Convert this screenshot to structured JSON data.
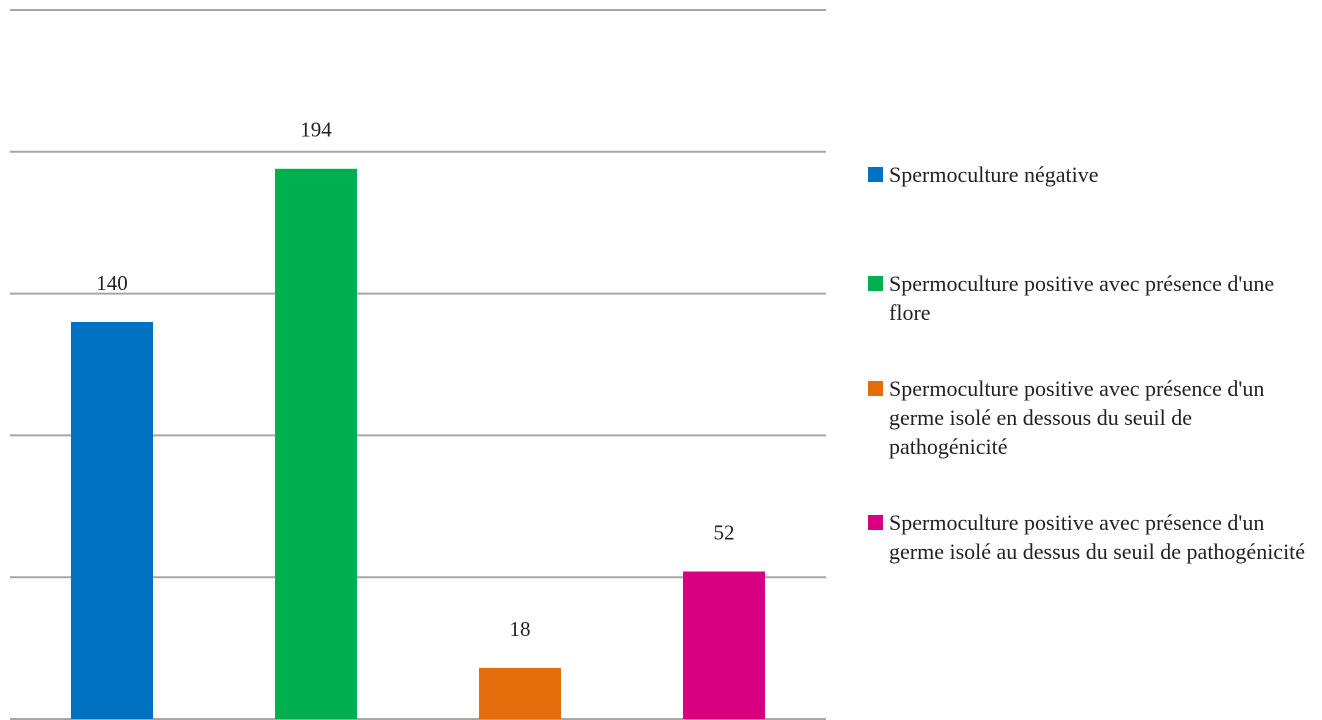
{
  "chart_data": {
    "type": "bar",
    "categories": [
      "Spermoculture négative",
      "Spermoculture positive avec présence d'une flore",
      "Spermoculture positive avec présence d'un germe isolé en dessous du seuil de pathogénicité",
      "Spermoculture positive avec présence d'un germe isolé au dessus du seuil de pathogénicité"
    ],
    "values": [
      140,
      194,
      18,
      52
    ],
    "colors": [
      "#0070c0",
      "#00b050",
      "#e46c0a",
      "#d60080"
    ],
    "ylim": [
      0,
      250
    ],
    "yticks": [
      0,
      50,
      100,
      150,
      200,
      250
    ],
    "grid": true,
    "legend": "right"
  }
}
